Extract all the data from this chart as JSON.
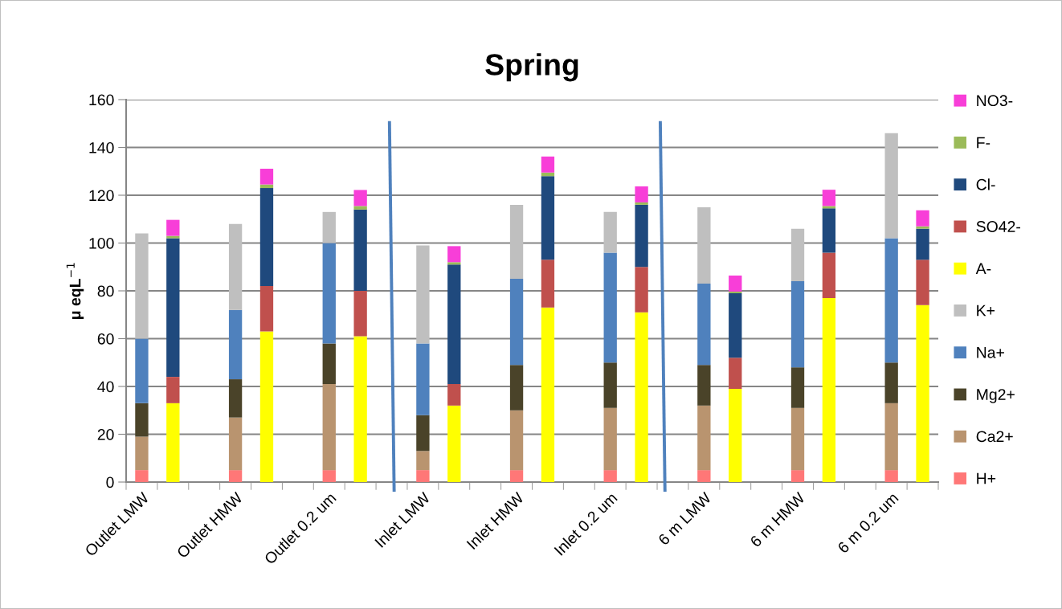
{
  "chart_data": {
    "type": "bar",
    "title": "Spring",
    "ylabel": "μ eqL$^{−1}$",
    "stacked": true,
    "categories": [
      "Outlet LMW",
      null,
      null,
      "Outlet HMW",
      null,
      null,
      "Outlet 0.2 um",
      null,
      null,
      "Inlet LMW",
      null,
      null,
      "Inlet HMW",
      null,
      null,
      "Inlet 0.2 um",
      null,
      null,
      "6 m LMW",
      null,
      null,
      "6 m HMW",
      null,
      null,
      "6 m 0.2 um",
      null
    ],
    "series": [
      {
        "name": "H+",
        "color": "#ff7777",
        "values": [
          5,
          null,
          null,
          5,
          null,
          null,
          5,
          null,
          null,
          5,
          null,
          null,
          5,
          null,
          null,
          5,
          null,
          null,
          5,
          null,
          null,
          5,
          null,
          null,
          5,
          null
        ]
      },
      {
        "name": "Ca2+",
        "color": "#b9946f",
        "values": [
          14,
          null,
          null,
          22,
          null,
          null,
          36,
          null,
          null,
          8,
          null,
          null,
          25,
          null,
          null,
          26,
          null,
          null,
          27,
          null,
          null,
          26,
          null,
          null,
          28,
          null
        ]
      },
      {
        "name": "Mg2+",
        "color": "#4a4329",
        "values": [
          14,
          null,
          null,
          16,
          null,
          null,
          17,
          null,
          null,
          15,
          null,
          null,
          19,
          null,
          null,
          19,
          null,
          null,
          17,
          null,
          null,
          17,
          null,
          null,
          17,
          null
        ]
      },
      {
        "name": "Na+",
        "color": "#4f81bd",
        "values": [
          27,
          null,
          null,
          29,
          null,
          null,
          42,
          null,
          null,
          30,
          null,
          null,
          36,
          null,
          null,
          46,
          null,
          null,
          34,
          null,
          null,
          36,
          null,
          null,
          52,
          null
        ]
      },
      {
        "name": "K+",
        "color": "#bfbfbf",
        "values": [
          44,
          null,
          null,
          36,
          null,
          null,
          13,
          null,
          null,
          41,
          null,
          null,
          31,
          null,
          null,
          17,
          null,
          null,
          32,
          null,
          null,
          22,
          null,
          null,
          44,
          null
        ]
      },
      {
        "name": "A-",
        "color": "#ffff00",
        "values": [
          null,
          33,
          null,
          null,
          63,
          null,
          null,
          61,
          null,
          null,
          32,
          null,
          null,
          73,
          null,
          null,
          71,
          null,
          null,
          39,
          null,
          null,
          77,
          null,
          null,
          74
        ]
      },
      {
        "name": "SO42-",
        "color": "#c0504d",
        "values": [
          null,
          11,
          null,
          null,
          19,
          null,
          null,
          19,
          null,
          null,
          9,
          null,
          null,
          20,
          null,
          null,
          19,
          null,
          null,
          13,
          null,
          null,
          19,
          null,
          null,
          19
        ]
      },
      {
        "name": "Cl-",
        "color": "#1f497d",
        "values": [
          null,
          58,
          null,
          null,
          41,
          null,
          null,
          34,
          null,
          null,
          50,
          null,
          null,
          35,
          null,
          null,
          26,
          null,
          null,
          27,
          null,
          null,
          18.5,
          null,
          null,
          13
        ]
      },
      {
        "name": "F-",
        "color": "#9bbb59",
        "values": [
          null,
          1,
          null,
          null,
          1.5,
          null,
          null,
          1.5,
          null,
          null,
          1,
          null,
          null,
          1.5,
          null,
          null,
          1,
          null,
          null,
          0.7,
          null,
          null,
          1,
          null,
          null,
          1
        ]
      },
      {
        "name": "NO3-",
        "color": "#f83ed8",
        "values": [
          null,
          6.7,
          null,
          null,
          6.6,
          null,
          null,
          6.7,
          null,
          null,
          6.7,
          null,
          null,
          6.7,
          null,
          null,
          6.7,
          null,
          null,
          6.7,
          null,
          null,
          6.8,
          null,
          null,
          6.7
        ]
      }
    ],
    "ylim": [
      0,
      160
    ],
    "yticks": [
      0,
      20,
      40,
      60,
      80,
      100,
      120,
      140,
      160
    ],
    "grid": "y",
    "legend": "right"
  }
}
